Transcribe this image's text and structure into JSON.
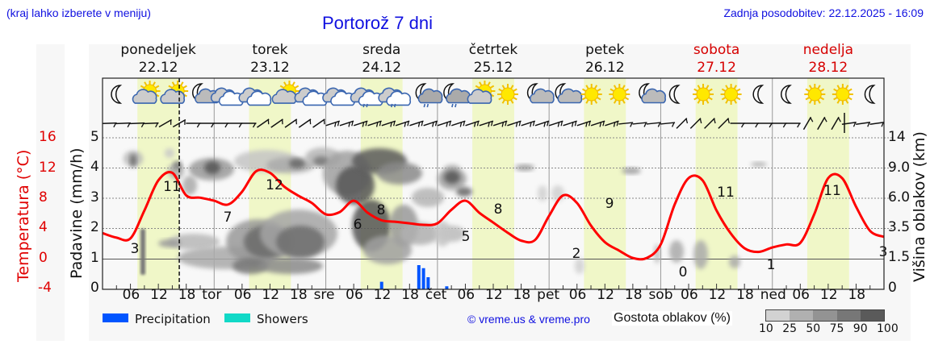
{
  "header": {
    "location_hint": "(kraj lahko izberete v meniju)",
    "title": "Portorož 7 dni",
    "last_update": "Zadnja posodobitev: 22.12.2025 - 16:09"
  },
  "days": [
    {
      "name": "ponedeljek",
      "date": "22.12",
      "weekend": false
    },
    {
      "name": "torek",
      "date": "23.12",
      "weekend": false
    },
    {
      "name": "sreda",
      "date": "24.12",
      "weekend": false
    },
    {
      "name": "četrtek",
      "date": "25.12",
      "weekend": false
    },
    {
      "name": "petek",
      "date": "26.12",
      "weekend": false
    },
    {
      "name": "sobota",
      "date": "27.12",
      "weekend": true
    },
    {
      "name": "nedelja",
      "date": "28.12",
      "weekend": true
    }
  ],
  "axes": {
    "temp_title": "Temperatura (°C)",
    "temp_ticks": [
      "16",
      "12",
      "8",
      "4",
      "0",
      "-4"
    ],
    "precip_title": "Padavine (mm/h)",
    "precip_ticks": [
      "5",
      "4",
      "3",
      "2",
      "1",
      "0"
    ],
    "cloud_title": "Višina oblakov (km)",
    "cloud_ticks": [
      "14",
      "9.0",
      "6.0",
      "3.5",
      "1.5",
      "0"
    ],
    "x_labels": [
      "06",
      "12",
      "18",
      "tor",
      "06",
      "12",
      "18",
      "sre",
      "06",
      "12",
      "18",
      "čet",
      "06",
      "12",
      "18",
      "pet",
      "06",
      "12",
      "18",
      "sob",
      "06",
      "12",
      "18",
      "ned",
      "06",
      "12",
      "18"
    ]
  },
  "icons": [
    "moon",
    "sun-cloud",
    "sun-cloud",
    "moon-cloud",
    "cloud",
    "cloud",
    "sun-cloud",
    "cloud",
    "cloud",
    "cloud-drizzle",
    "cloud-drizzle",
    "moon-cloud-drizzle",
    "moon-cloud-drizzle",
    "sun-cloud",
    "sun",
    "moon-cloud",
    "moon-cloud",
    "sun",
    "sun",
    "moon-cloud",
    "moon",
    "sun",
    "sun",
    "moon",
    "moon",
    "sun",
    "sun",
    "moon"
  ],
  "legend": {
    "precipitation_label": "Precipitation",
    "precipitation_color": "#0055ff",
    "showers_label": "Showers",
    "showers_color": "#11d9c7",
    "copyright": "© vreme.us & vreme.pro",
    "cloud_density_title": "Gostota oblakov (%)",
    "cloud_density_ticks": [
      "10",
      "25",
      "50",
      "75",
      "90",
      "100"
    ],
    "cloud_density_colors": [
      "#d2d2d2",
      "#b0b0b0",
      "#939393",
      "#777777",
      "#5a5a5a"
    ]
  },
  "colors": {
    "temperature_line": "#ff0000",
    "daytime_band": "#f0f7c8",
    "plot_bg": "#f8f8f8"
  },
  "chart_data": {
    "type": "line",
    "title": "Portorož 7 dni",
    "xlabel": "",
    "ylabel": "Padavine (mm/h)",
    "ylabel_left_outer": "Temperatura (°C)",
    "ylabel_right": "Višina oblakov (km)",
    "ylim": [
      0,
      5.5
    ],
    "temp_lim": [
      -4,
      18
    ],
    "now_marker": "22.12 16:00",
    "series": [
      {
        "name": "Temperatura (°C)",
        "x_hours": [
          0,
          3,
          6,
          9,
          12,
          15,
          18,
          21,
          24,
          27,
          30,
          33,
          36,
          39,
          42,
          45,
          48,
          51,
          54,
          57,
          60,
          63,
          66,
          69,
          72,
          75,
          78,
          81,
          84,
          87,
          90,
          93,
          96,
          99,
          102,
          105,
          108,
          111,
          114,
          117,
          120,
          123,
          126,
          129,
          132,
          135,
          138,
          141,
          144,
          147,
          150,
          153,
          156,
          159,
          162,
          165,
          168
        ],
        "values": [
          3.5,
          2.9,
          2.8,
          6.5,
          10.5,
          11.5,
          8.5,
          8.2,
          7.8,
          7.3,
          9,
          11.7,
          11.5,
          9.7,
          8.5,
          7.5,
          6,
          6.3,
          7.8,
          6.2,
          5.2,
          5,
          4.8,
          4.6,
          4.8,
          6.6,
          7.8,
          6.2,
          4.9,
          3.6,
          2.5,
          2.6,
          5.8,
          8.5,
          7.5,
          4.5,
          2.3,
          1.2,
          0.2,
          0.2,
          2,
          7.3,
          10.8,
          10.5,
          6.5,
          3.5,
          1.5,
          1.0,
          1.6,
          2.0,
          2.2,
          6.0,
          10.8,
          10.8,
          7.0,
          3.8,
          3.0
        ],
        "labels": [
          {
            "hour": 6,
            "value": 3
          },
          {
            "hour": 15,
            "value": 11
          },
          {
            "hour": 27,
            "value": 7
          },
          {
            "hour": 36,
            "value": 12
          },
          {
            "hour": 51,
            "value": 6
          },
          {
            "hour": 55,
            "value": 8
          },
          {
            "hour": 75,
            "value": 5
          },
          {
            "hour": 81,
            "value": 8
          },
          {
            "hour": 100,
            "value": 2
          },
          {
            "hour": 105,
            "value": 9
          },
          {
            "hour": 123,
            "value": 0
          },
          {
            "hour": 131,
            "value": 11
          },
          {
            "hour": 142,
            "value": 1
          },
          {
            "hour": 155,
            "value": 11
          },
          {
            "hour": 168,
            "value": 3
          }
        ]
      },
      {
        "name": "Precipitation (mm/h)",
        "x_hours": [
          60,
          68,
          69,
          70,
          74
        ],
        "values": [
          0.25,
          0.8,
          0.7,
          0.4,
          0.1
        ]
      },
      {
        "name": "Showers (mm/h)",
        "x_hours": [],
        "values": []
      }
    ],
    "cloud_cover": {
      "description": "Grey shaded cloud density contours (10-100%) by altitude; heavy cloud 23.12–24.12, scattered low cloud 26.12–27.12",
      "altitude_ticks_km": [
        0,
        1.5,
        3.5,
        6.0,
        9.0,
        14
      ]
    },
    "grid": true,
    "legend_position": "bottom"
  }
}
